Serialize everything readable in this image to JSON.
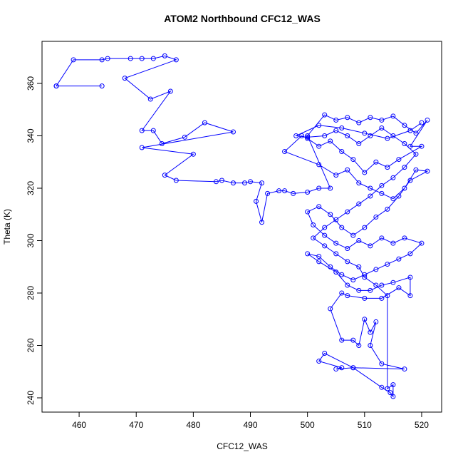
{
  "chart_data": {
    "type": "line",
    "title": "ATOM2 Northbound CFC12_WAS",
    "x_label": "CFC12_WAS",
    "y_label": "Theta (K)",
    "color": "#0000ff",
    "markers": true,
    "xlim": [
      453.5,
      523.5
    ],
    "xticks": [
      460,
      470,
      480,
      490,
      500,
      510,
      520
    ],
    "ylim": [
      234.56,
      376.05
    ],
    "yticks": [
      240,
      260,
      280,
      300,
      320,
      340,
      360
    ],
    "x": [
      456,
      464,
      456,
      459,
      464,
      465,
      469,
      471,
      473,
      475,
      477,
      468,
      472.5,
      476,
      471,
      473,
      474.5,
      478.5,
      482,
      487,
      471,
      480,
      475,
      477,
      484,
      485,
      487,
      489,
      490,
      492,
      491,
      492,
      493,
      495,
      496,
      497.5,
      500,
      502,
      504,
      500,
      503,
      505,
      507,
      509,
      511,
      513,
      515,
      517,
      519,
      521,
      518,
      520,
      516,
      514,
      512,
      510,
      508,
      506,
      504,
      502,
      500,
      499,
      496,
      502,
      505,
      507,
      509,
      511,
      513,
      515,
      517,
      519,
      521,
      518,
      516,
      514,
      512,
      510,
      508,
      506,
      504,
      502,
      500,
      501,
      503,
      505,
      507,
      509,
      511,
      513,
      515,
      517,
      520,
      518,
      516,
      514,
      512,
      510,
      508,
      506,
      504,
      502,
      500,
      502,
      505,
      507,
      509,
      511,
      513,
      515,
      518,
      518,
      516,
      513,
      510,
      507,
      506,
      504,
      506,
      508,
      509,
      510,
      511,
      512,
      511,
      513,
      517,
      508,
      505,
      506,
      502,
      503,
      508,
      513,
      514.5,
      515,
      515,
      514,
      514,
      512,
      510,
      509,
      507,
      505,
      503,
      501,
      503,
      505,
      507,
      509,
      511,
      513,
      515,
      517,
      519,
      517,
      515,
      513,
      511,
      509,
      507,
      505,
      503,
      500,
      498,
      502,
      506,
      510,
      514,
      518,
      520
    ],
    "values": [
      359,
      359,
      359,
      369,
      369,
      369.5,
      369.5,
      369.5,
      369.5,
      370.5,
      369,
      362,
      354,
      357,
      342,
      342,
      337,
      339.5,
      345,
      341.5,
      335.5,
      333,
      325,
      323,
      322.5,
      323,
      322,
      322,
      322.5,
      322,
      315,
      307,
      318,
      319,
      319,
      318,
      318.5,
      320,
      320,
      340,
      348,
      346,
      347,
      345,
      347,
      346,
      347.5,
      344,
      341,
      346,
      336,
      336,
      331,
      328,
      330,
      326,
      331,
      334,
      338,
      336,
      339,
      340,
      334,
      329,
      325,
      327,
      322,
      320,
      318,
      316,
      320,
      327,
      326.5,
      323,
      317,
      312,
      309,
      305,
      302,
      305,
      310,
      313,
      311,
      306,
      302,
      299,
      297,
      300,
      298,
      301,
      299,
      301,
      299,
      295,
      293,
      291,
      289,
      287,
      285,
      287,
      290,
      294,
      295,
      292,
      288,
      283,
      281,
      281,
      283,
      284,
      286,
      279,
      282,
      278,
      278,
      279,
      280,
      274,
      262,
      262,
      260,
      270,
      265,
      269,
      260,
      253,
      251,
      251.5,
      251,
      251.5,
      254,
      257,
      251.5,
      244,
      242,
      240.5,
      245,
      243.5,
      279,
      283,
      286,
      290,
      292,
      295,
      298,
      301,
      305,
      308,
      311,
      314,
      317,
      321,
      324,
      328,
      333,
      337,
      340,
      343,
      340,
      337,
      340,
      342,
      340,
      339.5,
      340,
      344,
      343,
      341,
      339,
      342,
      345
    ]
  }
}
